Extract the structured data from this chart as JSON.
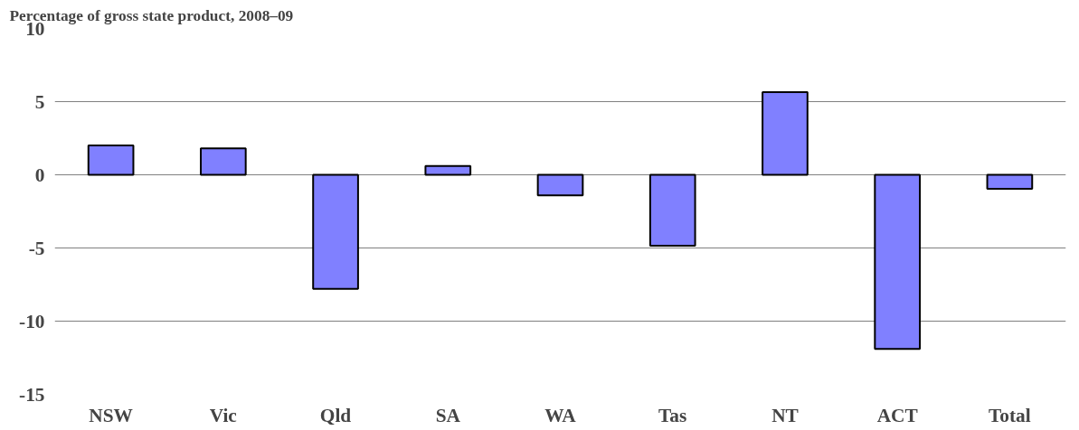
{
  "chart_data": {
    "type": "bar",
    "title": "Percentage of gross state product, 2008–09",
    "categories": [
      "NSW",
      "Vic",
      "Qld",
      "SA",
      "WA",
      "Tas",
      "NT",
      "ACT",
      "Total"
    ],
    "values": [
      2.0,
      1.8,
      -7.8,
      0.6,
      -1.4,
      -4.85,
      5.65,
      -11.9,
      -0.95
    ],
    "color": "#8080ff",
    "ylim": [
      -15,
      10
    ],
    "yticks": [
      -15,
      -10,
      -5,
      0,
      5,
      10
    ],
    "grid": "y"
  }
}
